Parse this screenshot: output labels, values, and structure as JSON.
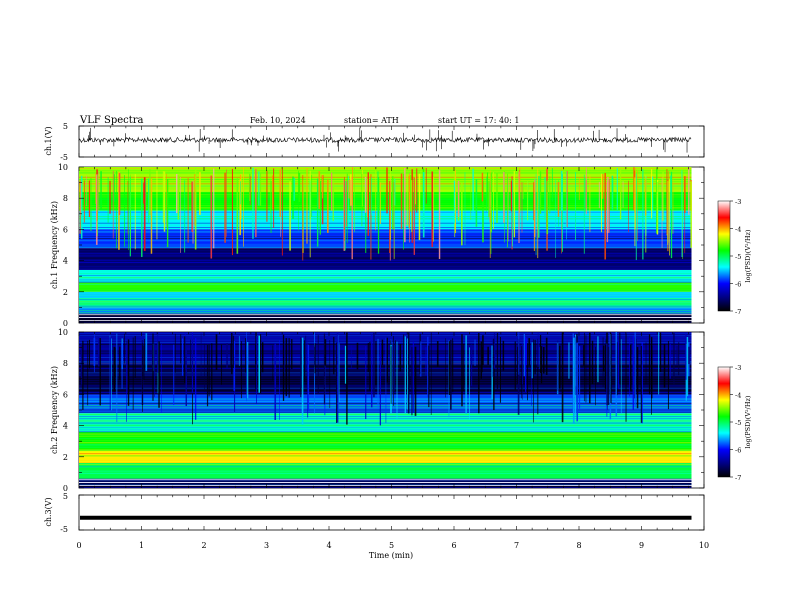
{
  "header": {
    "title": "VLF Spectra",
    "date": "Feb. 10, 2024",
    "station": "station= ATH",
    "start_ut": "start UT =   17: 40: 1"
  },
  "chart_data": [
    {
      "type": "line",
      "panel": "ch1-waveform",
      "ylabel": "ch.1(V)",
      "ylim": [
        -5,
        5
      ],
      "yticks": [
        "5",
        "-5"
      ],
      "xlim": [
        0,
        10
      ],
      "data_extent_min": [
        0,
        9.8
      ],
      "baseline_v": 0.5
    },
    {
      "type": "heatmap",
      "panel": "ch1-spectrogram",
      "ylabel": "ch.1  Frequency (kHz)",
      "ylim": [
        0,
        10
      ],
      "yticks": [
        "0",
        "2",
        "4",
        "6",
        "8",
        "10"
      ],
      "xlim": [
        0,
        10
      ],
      "data_extent_min": [
        0,
        9.8
      ],
      "colorbar": {
        "label": "log(PSD)(V²/Hz)",
        "range": [
          -7,
          -3
        ],
        "ticks": [
          "-3",
          "-4",
          "-5",
          "-6",
          "-7"
        ]
      },
      "bands_khz": [
        {
          "f": [
            0.0,
            0.6
          ],
          "level": -6.8
        },
        {
          "f": [
            0.6,
            1.0
          ],
          "level": -6.0
        },
        {
          "f": [
            1.0,
            1.6
          ],
          "level": -5.4
        },
        {
          "f": [
            1.6,
            2.0
          ],
          "level": -5.8
        },
        {
          "f": [
            2.0,
            2.6
          ],
          "level": -4.9
        },
        {
          "f": [
            2.6,
            3.4
          ],
          "level": -5.6
        },
        {
          "f": [
            3.4,
            4.8
          ],
          "level": -6.7
        },
        {
          "f": [
            4.8,
            6.0
          ],
          "level": -6.2
        },
        {
          "f": [
            6.0,
            7.2
          ],
          "level": -5.7
        },
        {
          "f": [
            7.2,
            8.4
          ],
          "level": -5.0
        },
        {
          "f": [
            8.4,
            10.0
          ],
          "level": -4.6
        }
      ]
    },
    {
      "type": "heatmap",
      "panel": "ch2-spectrogram",
      "ylabel": "ch.2  Frequency (kHz)",
      "ylim": [
        0,
        10
      ],
      "yticks": [
        "0",
        "2",
        "4",
        "6",
        "8",
        "10"
      ],
      "xlim": [
        0,
        10
      ],
      "data_extent_min": [
        0,
        9.8
      ],
      "colorbar": {
        "label": "log(PSD)(V²/Hz)",
        "range": [
          -7,
          -3
        ],
        "ticks": [
          "-3",
          "-4",
          "-5",
          "-6",
          "-7"
        ]
      },
      "bands_khz": [
        {
          "f": [
            0.0,
            0.6
          ],
          "level": -6.6
        },
        {
          "f": [
            0.6,
            1.6
          ],
          "level": -5.2
        },
        {
          "f": [
            1.6,
            2.4
          ],
          "level": -4.3
        },
        {
          "f": [
            2.4,
            3.6
          ],
          "level": -5.0
        },
        {
          "f": [
            3.6,
            4.8
          ],
          "level": -5.5
        },
        {
          "f": [
            4.8,
            6.0
          ],
          "level": -6.1
        },
        {
          "f": [
            6.0,
            8.0
          ],
          "level": -6.8
        },
        {
          "f": [
            8.0,
            10.0
          ],
          "level": -6.6
        }
      ]
    },
    {
      "type": "line",
      "panel": "ch3-waveform",
      "ylabel": "ch.3(V)",
      "ylim": [
        -5,
        5
      ],
      "yticks": [
        "5",
        "-5"
      ],
      "xlim": [
        0,
        10
      ],
      "data_extent_min": [
        0,
        9.8
      ],
      "baseline_v": -1.5,
      "xlabel": "Time  (min)",
      "xticks": [
        "0",
        "1",
        "2",
        "3",
        "4",
        "5",
        "6",
        "7",
        "8",
        "9",
        "10"
      ]
    }
  ],
  "colors": {
    "colormap": [
      "#000000",
      "#0000ff",
      "#00ffff",
      "#00ff00",
      "#ffff00",
      "#ff0000",
      "#ffffff"
    ],
    "trace": "#000000"
  }
}
